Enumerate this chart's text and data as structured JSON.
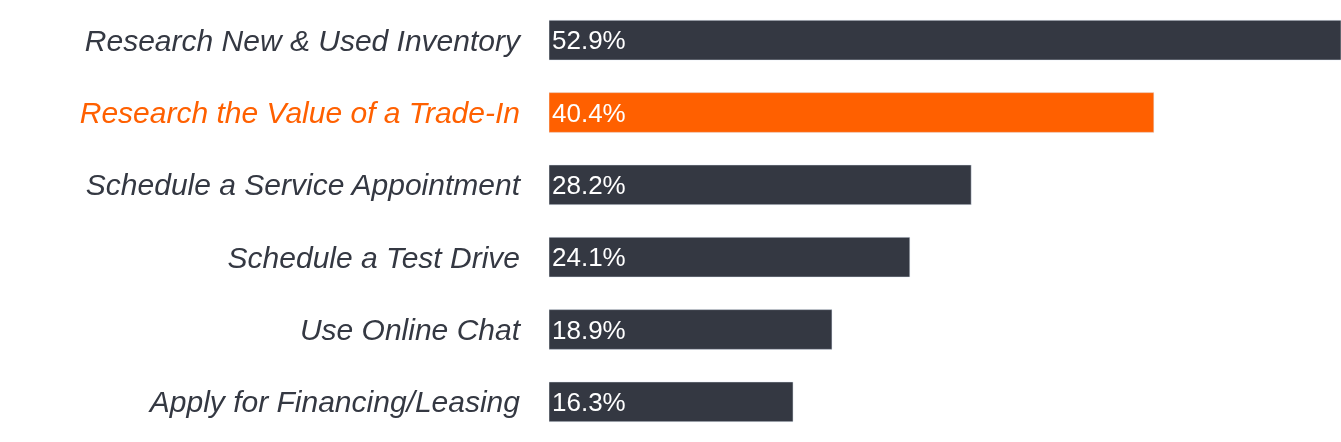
{
  "chart_data": {
    "type": "bar",
    "orientation": "horizontal",
    "categories": [
      "Research New & Used Inventory",
      "Research the Value of a Trade-In",
      "Schedule a Service Appointment",
      "Schedule a Test Drive",
      "Use Online Chat",
      "Apply for Financing/Leasing"
    ],
    "values": [
      52.9,
      40.4,
      28.2,
      24.1,
      18.9,
      16.3
    ],
    "value_labels": [
      "52.9%",
      "40.4%",
      "28.2%",
      "24.1%",
      "18.9%",
      "16.3%"
    ],
    "colors": [
      "#343842",
      "#ff6000",
      "#343842",
      "#343842",
      "#343842",
      "#343842"
    ],
    "xlim": [
      0,
      52.9
    ],
    "tick_labels": "y"
  }
}
